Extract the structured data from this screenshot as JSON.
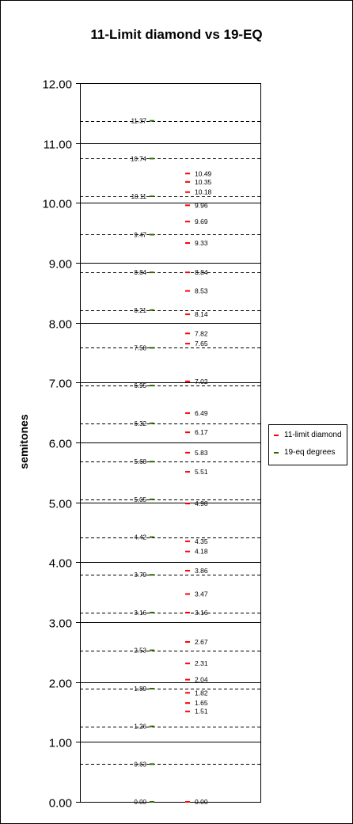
{
  "chart_data": {
    "type": "scatter",
    "title": "11-Limit diamond vs 19-EQ",
    "ylabel": "semitones",
    "ylim": [
      0,
      12
    ],
    "y_major_step": 1,
    "y_tick_labels": [
      "0.00",
      "1.00",
      "2.00",
      "3.00",
      "4.00",
      "5.00",
      "6.00",
      "7.00",
      "8.00",
      "9.00",
      "10.00",
      "11.00",
      "12.00"
    ],
    "grid": true,
    "legend_position": "right",
    "series": [
      {
        "name": "11-limit diamond",
        "color": "#ff0000",
        "values": [
          0.0,
          1.51,
          1.65,
          1.82,
          2.04,
          2.31,
          2.67,
          3.16,
          3.47,
          3.86,
          4.18,
          4.35,
          4.98,
          5.51,
          5.83,
          6.17,
          6.49,
          7.02,
          7.65,
          7.82,
          8.14,
          8.53,
          8.84,
          9.33,
          9.69,
          9.96,
          10.18,
          10.35,
          10.49
        ],
        "labels": [
          "0.00",
          "1.51",
          "1.65",
          "1.82",
          "2.04",
          "2.31",
          "2.67",
          "3.16",
          "3.47",
          "3.86",
          "4.18",
          "4.35",
          "4.98",
          "5.51",
          "5.83",
          "6.17",
          "6.49",
          "7.02",
          "7.65",
          "7.82",
          "8.14",
          "8.53",
          "8.84",
          "9.33",
          "9.69",
          "9.96",
          "10.18",
          "10.35",
          "10.49"
        ]
      },
      {
        "name": "19-eq degrees",
        "color": "#336600",
        "values": [
          0.0,
          0.63,
          1.26,
          1.89,
          2.53,
          3.16,
          3.79,
          4.42,
          5.05,
          5.68,
          6.32,
          6.95,
          7.58,
          8.21,
          8.84,
          9.47,
          10.11,
          10.74,
          11.37
        ],
        "labels": [
          "0.00",
          "0.63",
          "1.26",
          "1.89",
          "2.53",
          "3.16",
          "3.79",
          "4.42",
          "5.05",
          "5.68",
          "6.32",
          "6.95",
          "7.58",
          "8.21",
          "8.84",
          "9.47",
          "10.11",
          "10.74",
          "11.37"
        ]
      }
    ]
  }
}
